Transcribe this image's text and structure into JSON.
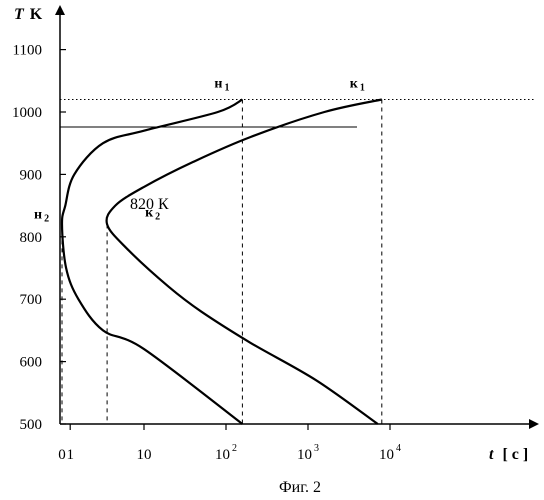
{
  "chart_data": {
    "type": "line",
    "ylabel_var": "T",
    "ylabel_unit": "K",
    "xlabel_var": "t",
    "xlabel_unit": "[ c ]",
    "x_scale": "log",
    "x_ticks": [
      {
        "value": 0,
        "label": "0",
        "kind": "plain"
      },
      {
        "value": 0.1,
        "label": "1",
        "kind": "plain"
      },
      {
        "value": 1,
        "label": "10",
        "kind": "plain"
      },
      {
        "value": 2,
        "label": "10",
        "exp": "2",
        "kind": "pow"
      },
      {
        "value": 3,
        "label": "10",
        "exp": "3",
        "kind": "pow"
      },
      {
        "value": 4,
        "label": "10",
        "exp": "4",
        "kind": "pow"
      }
    ],
    "y_ticks": [
      500,
      600,
      700,
      800,
      900,
      1000,
      1100
    ],
    "ylim": [
      500,
      1100
    ],
    "series": [
      {
        "points": [
          [
            2.2,
            1020
          ],
          [
            1.9,
            1000
          ],
          [
            1.0,
            970
          ],
          [
            0.5,
            950
          ],
          [
            0.15,
            900
          ],
          [
            0.04,
            850
          ],
          [
            0.0,
            820
          ],
          [
            0.05,
            750
          ],
          [
            0.2,
            700
          ],
          [
            0.5,
            650
          ],
          [
            1.0,
            620
          ],
          [
            2.2,
            500
          ]
        ]
      },
      {
        "points": [
          [
            3.9,
            1020
          ],
          [
            3.2,
            1000
          ],
          [
            2.3,
            960
          ],
          [
            1.6,
            920
          ],
          [
            1.0,
            880
          ],
          [
            0.65,
            850
          ],
          [
            0.55,
            820
          ],
          [
            0.8,
            780
          ],
          [
            1.3,
            720
          ],
          [
            1.7,
            680
          ],
          [
            2.3,
            630
          ],
          [
            3.1,
            570
          ],
          [
            3.85,
            500
          ]
        ]
      }
    ],
    "point_labels": [
      {
        "text": "н",
        "sub": "1",
        "x": 2.2,
        "T": 1020
      },
      {
        "text": "к",
        "sub": "1",
        "x": 3.9,
        "T": 1020
      },
      {
        "text": "н",
        "sub": "2",
        "x": 0.0,
        "T": 820
      },
      {
        "text": "к",
        "sub": "2",
        "x": 0.55,
        "T": 820
      }
    ],
    "annotation": "820  К",
    "reference_lines": {
      "dotted_T": 1020,
      "solid_T": 976
    }
  },
  "caption": "Фиг. 2"
}
